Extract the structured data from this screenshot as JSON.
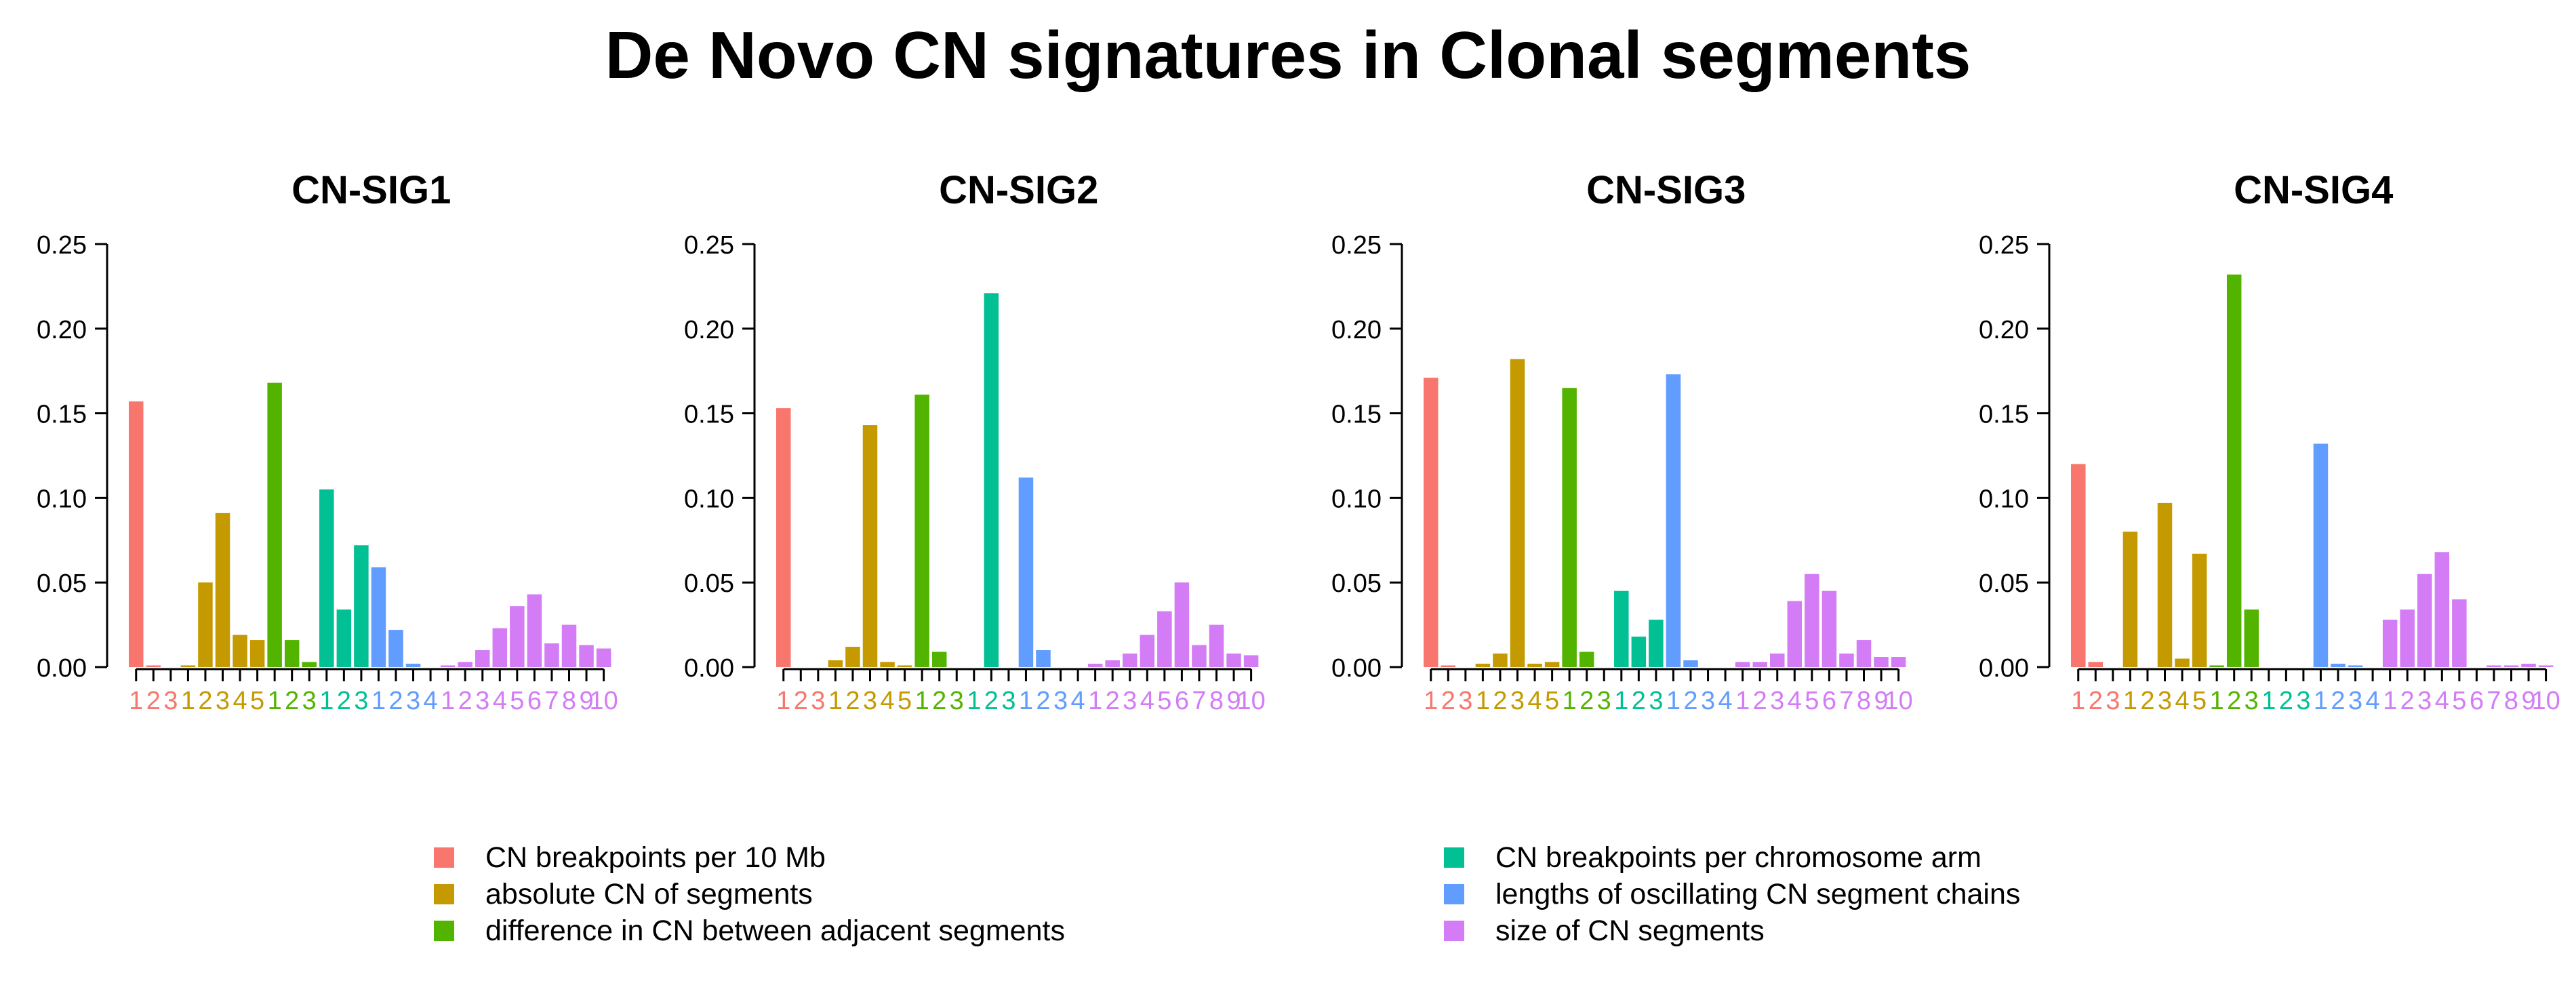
{
  "title": "De Novo CN signatures in Clonal segments",
  "groups": [
    {
      "name": "CN breakpoints per 10 Mb",
      "color": "#F8766D",
      "n": 3
    },
    {
      "name": "absolute CN of segments",
      "color": "#C49A00",
      "n": 5
    },
    {
      "name": "difference in CN between adjacent segments",
      "color": "#53B400",
      "n": 3
    },
    {
      "name": "CN breakpoints per chromosome arm",
      "color": "#00C094",
      "n": 3
    },
    {
      "name": "lengths of oscillating CN segment chains",
      "color": "#619CFF",
      "n": 4
    },
    {
      "name": "size of CN segments",
      "color": "#D37CF6",
      "n": 10
    }
  ],
  "legend": {
    "left_items": [
      {
        "label": "CN breakpoints per 10 Mb",
        "color": "#F8766D"
      },
      {
        "label": "absolute CN of segments",
        "color": "#C49A00"
      },
      {
        "label": "difference in CN between adjacent segments",
        "color": "#53B400"
      }
    ],
    "right_items": [
      {
        "label": "CN breakpoints per chromosome arm",
        "color": "#00C094"
      },
      {
        "label": "lengths of oscillating CN segment chains",
        "color": "#619CFF"
      },
      {
        "label": "size of CN segments",
        "color": "#D37CF6"
      }
    ]
  },
  "chart_data": [
    {
      "type": "bar",
      "title": "CN-SIG1",
      "ylim": [
        0,
        0.25
      ],
      "yticks": [
        "0.00",
        "0.05",
        "0.10",
        "0.15",
        "0.20",
        "0.25"
      ],
      "categories": [
        "1",
        "2",
        "3",
        "1",
        "2",
        "3",
        "4",
        "5",
        "1",
        "2",
        "3",
        "1",
        "2",
        "3",
        "1",
        "2",
        "3",
        "4",
        "1",
        "2",
        "3",
        "4",
        "5",
        "6",
        "7",
        "8",
        "9",
        "10"
      ],
      "values": [
        0.157,
        0.001,
        0.0,
        0.001,
        0.05,
        0.091,
        0.019,
        0.016,
        0.168,
        0.016,
        0.003,
        0.105,
        0.034,
        0.072,
        0.059,
        0.022,
        0.002,
        0.0,
        0.001,
        0.003,
        0.01,
        0.023,
        0.036,
        0.043,
        0.014,
        0.025,
        0.013,
        0.011
      ]
    },
    {
      "type": "bar",
      "title": "CN-SIG2",
      "ylim": [
        0,
        0.25
      ],
      "yticks": [
        "0.00",
        "0.05",
        "0.10",
        "0.15",
        "0.20",
        "0.25"
      ],
      "categories": [
        "1",
        "2",
        "3",
        "1",
        "2",
        "3",
        "4",
        "5",
        "1",
        "2",
        "3",
        "1",
        "2",
        "3",
        "1",
        "2",
        "3",
        "4",
        "1",
        "2",
        "3",
        "4",
        "5",
        "6",
        "7",
        "8",
        "9",
        "10"
      ],
      "values": [
        0.153,
        0.0,
        0.0,
        0.004,
        0.012,
        0.143,
        0.003,
        0.001,
        0.161,
        0.009,
        0.0,
        0.0,
        0.221,
        0.0,
        0.112,
        0.01,
        0.0,
        0.0,
        0.002,
        0.004,
        0.008,
        0.019,
        0.033,
        0.05,
        0.013,
        0.025,
        0.008,
        0.007
      ]
    },
    {
      "type": "bar",
      "title": "CN-SIG3",
      "ylim": [
        0,
        0.25
      ],
      "yticks": [
        "0.00",
        "0.05",
        "0.10",
        "0.15",
        "0.20",
        "0.25"
      ],
      "categories": [
        "1",
        "2",
        "3",
        "1",
        "2",
        "3",
        "4",
        "5",
        "1",
        "2",
        "3",
        "1",
        "2",
        "3",
        "1",
        "2",
        "3",
        "4",
        "1",
        "2",
        "3",
        "4",
        "5",
        "6",
        "7",
        "8",
        "9",
        "10"
      ],
      "values": [
        0.171,
        0.001,
        0.0,
        0.002,
        0.008,
        0.182,
        0.002,
        0.003,
        0.165,
        0.009,
        0.0,
        0.045,
        0.018,
        0.028,
        0.173,
        0.004,
        0.0,
        0.0,
        0.003,
        0.003,
        0.008,
        0.039,
        0.055,
        0.045,
        0.008,
        0.016,
        0.006,
        0.006
      ]
    },
    {
      "type": "bar",
      "title": "CN-SIG4",
      "ylim": [
        0,
        0.25
      ],
      "yticks": [
        "0.00",
        "0.05",
        "0.10",
        "0.15",
        "0.20",
        "0.25"
      ],
      "categories": [
        "1",
        "2",
        "3",
        "1",
        "2",
        "3",
        "4",
        "5",
        "1",
        "2",
        "3",
        "1",
        "2",
        "3",
        "1",
        "2",
        "3",
        "4",
        "1",
        "2",
        "3",
        "4",
        "5",
        "6",
        "7",
        "8",
        "9",
        "10"
      ],
      "values": [
        0.12,
        0.003,
        0.0,
        0.08,
        0.0,
        0.097,
        0.005,
        0.067,
        0.001,
        0.232,
        0.034,
        0.0,
        0.0,
        0.0,
        0.132,
        0.002,
        0.001,
        0.0,
        0.028,
        0.034,
        0.055,
        0.068,
        0.04,
        0.0,
        0.001,
        0.001,
        0.002,
        0.001
      ]
    }
  ]
}
